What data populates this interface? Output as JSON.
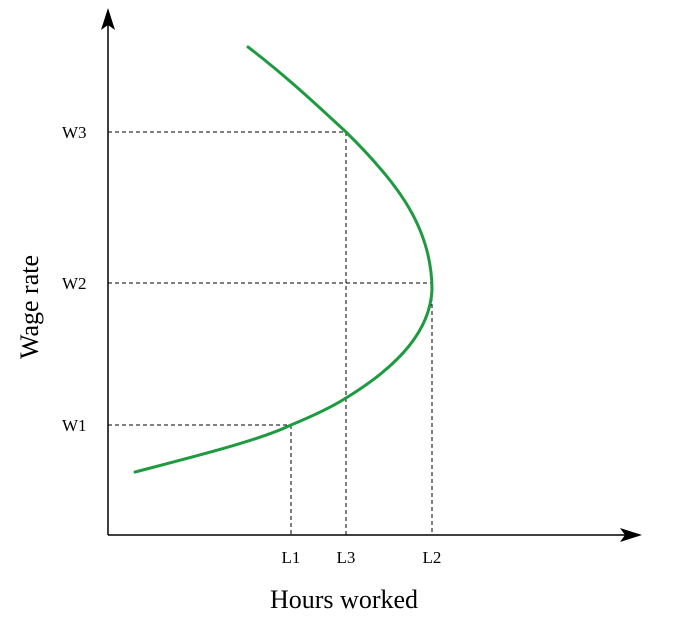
{
  "chart_data": {
    "type": "line",
    "xlabel": "Hours worked",
    "ylabel": "Wage rate",
    "x_ticks": [
      "L1",
      "L3",
      "L2"
    ],
    "y_ticks": [
      "W1",
      "W2",
      "W3"
    ],
    "grid": false,
    "legend": "none",
    "series": [
      {
        "color": "#1e9a40",
        "description_points": [
          {
            "hours": 0.08,
            "wage": 0.1
          },
          {
            "hours": "L1",
            "wage": "W1"
          },
          {
            "hours": "L3",
            "wage": "between W1 and W2"
          },
          {
            "hours": "L2",
            "wage": "W2"
          },
          {
            "hours": "L3",
            "wage": "W3"
          },
          {
            "hours": 0.4,
            "wage": 1.0
          }
        ]
      }
    ],
    "reference_lines": [
      {
        "from": "W1",
        "to": "L1"
      },
      {
        "from": "W2",
        "to": "L2"
      },
      {
        "from": "W3",
        "to": "L3"
      }
    ]
  }
}
